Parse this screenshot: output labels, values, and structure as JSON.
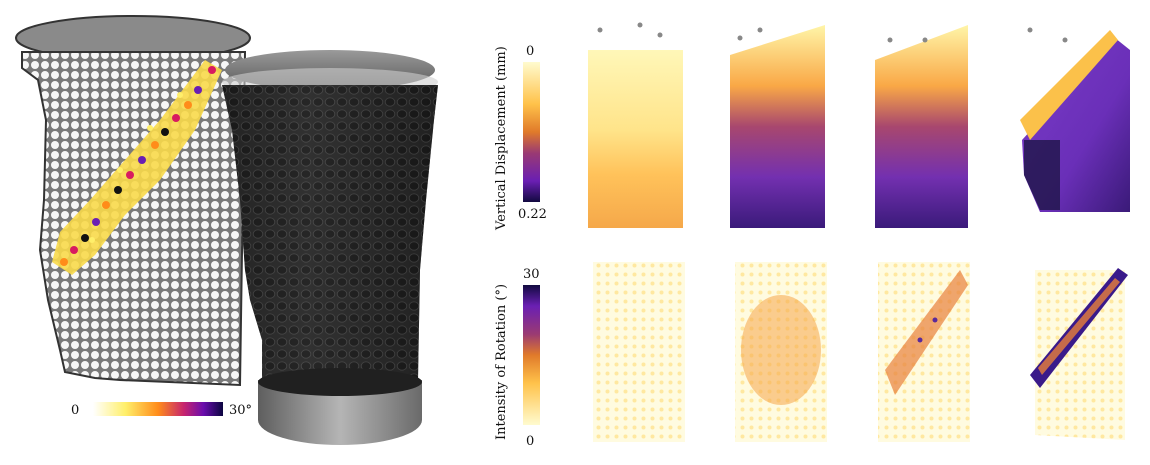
{
  "left_panel": {
    "colorbar_min": "0",
    "colorbar_max": "30°"
  },
  "vertical_displacement": {
    "title": "Vertical Displacement (mm)",
    "colorbar_top": "0",
    "colorbar_bottom": "0.22"
  },
  "rotation": {
    "title": "Intensity of Rotation (°)",
    "colorbar_top": "30",
    "colorbar_bottom": "0"
  },
  "colors": {
    "background": "#ffffff",
    "membrane_gray": "#7a7a7a",
    "specimen_dark": "#2b2b2b"
  }
}
